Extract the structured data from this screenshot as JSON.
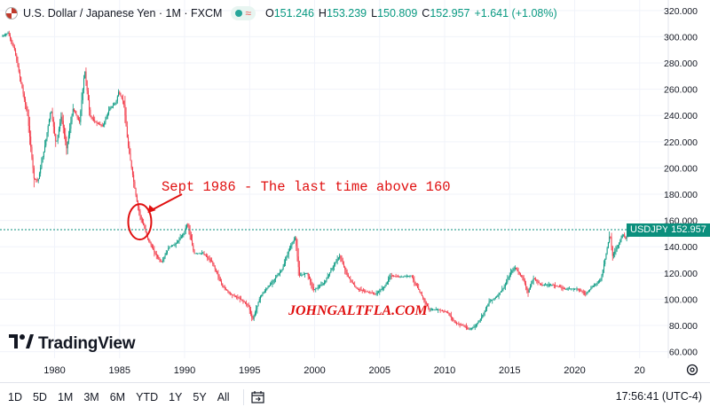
{
  "header": {
    "title": "U.S. Dollar / Japanese Yen · 1M · FXCM",
    "quotes": [
      {
        "label": "O",
        "value": "151.246"
      },
      {
        "label": "H",
        "value": "153.239"
      },
      {
        "label": "L",
        "value": "150.809"
      },
      {
        "label": "C",
        "value": "152.957"
      }
    ],
    "change": "+1.641 (+1.08%)",
    "flag_icon": "usd-jpy-flag-icon",
    "status_icons": [
      "market-open-dot-icon",
      "indicator-wave-icon"
    ]
  },
  "price_tag": {
    "symbol": "USDJPY",
    "price": "152.957"
  },
  "annotations": {
    "callout": "Sept 1986 - The last time above 160",
    "watermark_url": "JOHNGALTFLA.COM"
  },
  "branding": {
    "name": "TradingView",
    "logo_icon": "tradingview-logo-icon"
  },
  "toolbar": {
    "ranges": [
      "1D",
      "5D",
      "1M",
      "3M",
      "6M",
      "YTD",
      "1Y",
      "5Y",
      "All"
    ],
    "calendar_icon": "calendar-goto-icon",
    "time": "17:56:41 (UTC-4)",
    "settings_icon": "gear-icon"
  },
  "colors": {
    "up": "#089981",
    "down": "#f23645",
    "annotation": "#e01010",
    "price_line": "#0b8f7d",
    "grid": "#f0f3fa"
  },
  "chart_data": {
    "type": "line",
    "style": "candlestick (monthly)",
    "xlabel": "",
    "ylabel": "",
    "x_ticks": [
      "1980",
      "1985",
      "1990",
      "1995",
      "2000",
      "2005",
      "2010",
      "2015",
      "2020",
      "20"
    ],
    "y_ticks": [
      "60.000",
      "80.000",
      "100.000",
      "120.000",
      "140.000",
      "160.000",
      "180.000",
      "200.000",
      "220.000",
      "240.000",
      "260.000",
      "280.000",
      "300.000",
      "320.000"
    ],
    "ylim": [
      55,
      328
    ],
    "xlim": [
      1975.8,
      2027.2
    ],
    "grid": true,
    "current_price": 152.957,
    "series": [
      {
        "x": [
          1976.0,
          1976.5,
          1977.0,
          1977.5,
          1978.0,
          1978.5,
          1978.8,
          1979.3,
          1979.8,
          1980.2,
          1980.6,
          1981.0,
          1981.5,
          1982.0,
          1982.4,
          1982.8,
          1983.2,
          1983.8,
          1984.3,
          1984.8,
          1985.0,
          1985.4,
          1985.7,
          1986.0,
          1986.4,
          1986.7,
          1986.9,
          1987.3,
          1987.8,
          1988.3,
          1988.9,
          1989.4,
          1990.0,
          1990.3,
          1990.8,
          1991.5,
          1992.2,
          1993.0,
          1993.6,
          1994.4,
          1995.0,
          1995.3,
          1995.9,
          1996.8,
          1997.6,
          1998.2,
          1998.6,
          1998.9,
          1999.5,
          2000.0,
          2000.8,
          2001.5,
          2002.0,
          2002.6,
          2003.3,
          2004.0,
          2004.8,
          2005.5,
          2005.9,
          2006.6,
          2007.5,
          2008.3,
          2008.9,
          2009.6,
          2010.3,
          2010.9,
          2011.5,
          2011.9,
          2012.4,
          2012.9,
          2013.5,
          2014.1,
          2014.7,
          2015.2,
          2015.5,
          2016.1,
          2016.5,
          2016.9,
          2017.5,
          2018.4,
          2019.3,
          2020.3,
          2020.9,
          2021.5,
          2022.1,
          2022.4,
          2022.8,
          2023.0,
          2023.5,
          2023.8,
          2024.0,
          2024.3
        ],
        "values": [
          300,
          303,
          290,
          265,
          240,
          192,
          190,
          215,
          245,
          218,
          240,
          215,
          245,
          235,
          275,
          240,
          235,
          232,
          245,
          250,
          258,
          250,
          220,
          200,
          175,
          162,
          157,
          145,
          135,
          128,
          140,
          142,
          150,
          158,
          135,
          135,
          128,
          110,
          104,
          100,
          95,
          84,
          102,
          113,
          123,
          140,
          147,
          118,
          120,
          107,
          112,
          125,
          133,
          118,
          108,
          106,
          104,
          110,
          118,
          117,
          118,
          103,
          92,
          92,
          90,
          82,
          80,
          77,
          79,
          86,
          98,
          102,
          110,
          121,
          124,
          116,
          105,
          116,
          111,
          111,
          108,
          108,
          104,
          110,
          115,
          130,
          150,
          133,
          143,
          150,
          146,
          151
        ]
      }
    ]
  }
}
